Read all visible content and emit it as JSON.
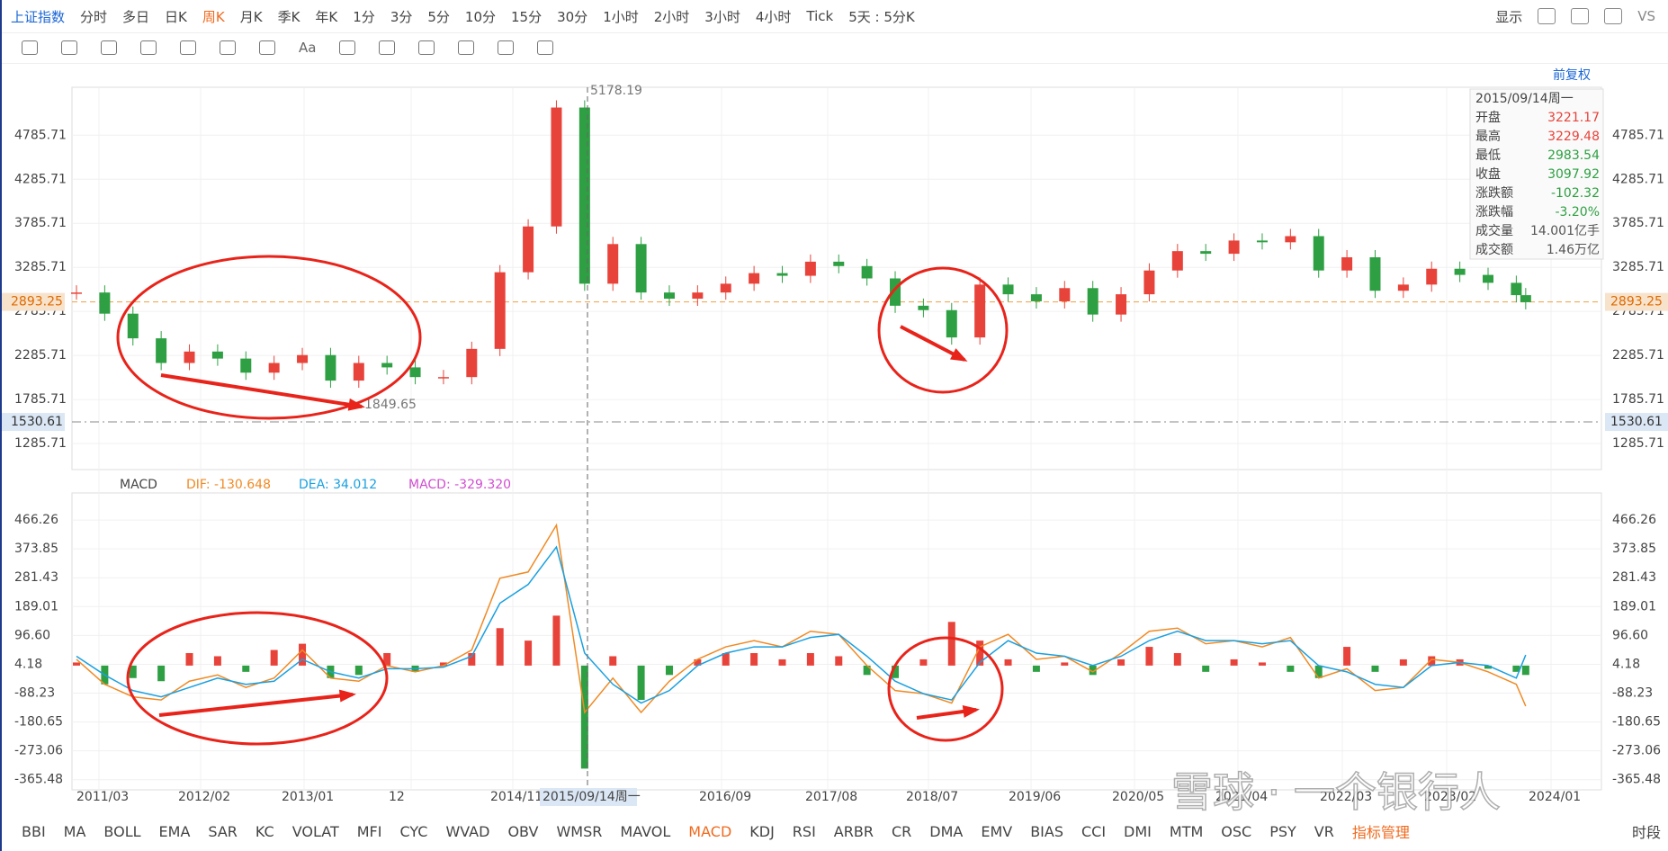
{
  "toolbar": {
    "index_name": "上证指数",
    "periods": [
      {
        "label": "分时"
      },
      {
        "label": "多日"
      },
      {
        "label": "日K"
      },
      {
        "label": "周K",
        "active": true
      },
      {
        "label": "月K"
      },
      {
        "label": "季K"
      },
      {
        "label": "年K"
      },
      {
        "label": "1分"
      },
      {
        "label": "3分"
      },
      {
        "label": "5分"
      },
      {
        "label": "10分"
      },
      {
        "label": "15分"
      },
      {
        "label": "30分"
      },
      {
        "label": "1小时"
      },
      {
        "label": "2小时"
      },
      {
        "label": "3小时"
      },
      {
        "label": "4小时"
      },
      {
        "label": "Tick"
      },
      {
        "label": "5天 : 5分K"
      }
    ],
    "display_label": "显示",
    "vs_label": "VS",
    "tools_text": "Aa"
  },
  "price_chart": {
    "adjust_label": "前复权",
    "ylim": [
      990,
      5330
    ],
    "yticks": [
      4785.71,
      4285.71,
      3785.71,
      3285.71,
      2785.71,
      2285.71,
      1785.71,
      1285.71
    ],
    "last_price": 2893.25,
    "low_line": 1530.61,
    "high_annotation": 5178.19,
    "low_annotation": 1849.65,
    "up_color": "#e8433a",
    "down_color": "#2ea043",
    "close": [
      3000,
      2760,
      2480,
      2200,
      2330,
      2250,
      2090,
      2200,
      2290,
      2000,
      2200,
      2150,
      2040,
      2040,
      2360,
      3230,
      3750,
      5100,
      3100,
      3550,
      3000,
      2930,
      3000,
      3100,
      3220,
      3190,
      3350,
      3300,
      3160,
      2850,
      2800,
      2490,
      3090,
      2980,
      2900,
      3050,
      2750,
      2980,
      3250,
      3470,
      3440,
      3590,
      3570,
      3640,
      3250,
      3400,
      3020,
      3090,
      3270,
      3200,
      3110,
      2970,
      2890
    ]
  },
  "info_box": {
    "date": "2015/09/14周一",
    "rows": [
      {
        "label": "开盘",
        "value": "3221.17",
        "color": "#e8433a"
      },
      {
        "label": "最高",
        "value": "3229.48",
        "color": "#e8433a"
      },
      {
        "label": "最低",
        "value": "2983.54",
        "color": "#2ea043"
      },
      {
        "label": "收盘",
        "value": "3097.92",
        "color": "#2ea043"
      },
      {
        "label": "涨跌额",
        "value": "-102.32",
        "color": "#2ea043"
      },
      {
        "label": "涨跌幅",
        "value": "-3.20%",
        "color": "#2ea043"
      },
      {
        "label": "成交量",
        "value": "14.001亿手",
        "color": "#555"
      },
      {
        "label": "成交额",
        "value": "1.46万亿",
        "color": "#555"
      }
    ]
  },
  "macd": {
    "name": "MACD",
    "dif_label": "DIF: -130.648",
    "dea_label": "DEA: 34.012",
    "macd_label": "MACD: -329.320",
    "dif_color": "#f08a24",
    "dea_color": "#1aa0e0",
    "macd_color": "#d04ed0",
    "ylim": [
      -398,
      553
    ],
    "yticks": [
      466.26,
      373.85,
      281.43,
      189.01,
      {
        "value": 96.6,
        "label": "96.60"
      },
      4.18,
      -88.23,
      -180.65,
      -273.06,
      -365.48
    ],
    "histogram": [
      10,
      -60,
      -40,
      -50,
      40,
      30,
      -20,
      50,
      70,
      -40,
      -30,
      40,
      -20,
      10,
      40,
      120,
      80,
      160,
      -330,
      30,
      -110,
      -30,
      20,
      40,
      40,
      20,
      40,
      30,
      -30,
      -40,
      20,
      140,
      80,
      20,
      -20,
      10,
      -30,
      20,
      60,
      40,
      -20,
      20,
      10,
      -20,
      -40,
      60,
      -20,
      20,
      30,
      20,
      -10,
      -20,
      -30
    ],
    "dif": [
      20,
      -60,
      -100,
      -110,
      -50,
      -30,
      -70,
      -40,
      50,
      -40,
      -50,
      0,
      -20,
      0,
      50,
      280,
      300,
      450,
      -150,
      -40,
      -150,
      -50,
      20,
      60,
      80,
      60,
      110,
      100,
      0,
      -80,
      -90,
      -120,
      60,
      100,
      20,
      30,
      -20,
      40,
      110,
      120,
      70,
      80,
      60,
      90,
      -40,
      -10,
      -80,
      -70,
      20,
      10,
      -20,
      -60,
      -130
    ],
    "dea": [
      30,
      -30,
      -80,
      -100,
      -70,
      -40,
      -60,
      -50,
      20,
      -20,
      -40,
      -10,
      -10,
      -5,
      30,
      200,
      260,
      380,
      40,
      -60,
      -120,
      -80,
      0,
      40,
      60,
      60,
      90,
      100,
      30,
      -50,
      -90,
      -110,
      10,
      80,
      40,
      30,
      0,
      30,
      80,
      110,
      80,
      80,
      70,
      80,
      0,
      -20,
      -60,
      -70,
      0,
      10,
      0,
      -40,
      34
    ]
  },
  "x_axis": {
    "labels": [
      "2011/03",
      "2012/02",
      "2013/01",
      "12",
      "2014/11",
      "2016/09",
      "2017/08",
      "2018/07",
      "2019/06",
      "2020/05",
      "2021/04",
      "2022/03",
      "2023/02",
      "2024/01"
    ],
    "crosshair_label": "2015/09/14周一"
  },
  "indicators": [
    "BBI",
    "MA",
    "BOLL",
    "EMA",
    "SAR",
    "KC",
    "VOLAT",
    "MFI",
    "CYC",
    "WVAD",
    "OBV",
    "WMSR",
    "MAVOL",
    "MACD",
    "KDJ",
    "RSI",
    "ARBR",
    "CR",
    "DMA",
    "EMV",
    "BIAS",
    "CCI",
    "DMI",
    "MTM",
    "OSC",
    "PSY",
    "VR"
  ],
  "indicator_manage": "指标管理",
  "session": "时段",
  "watermark": "雪球 · 一个银行人"
}
